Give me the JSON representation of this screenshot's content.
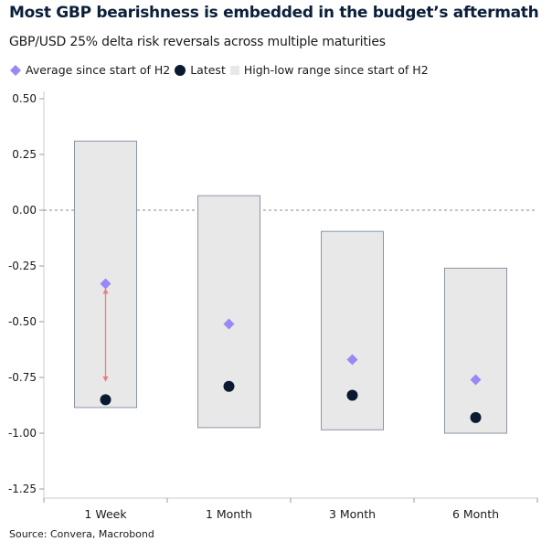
{
  "chart_data": {
    "type": "range-dot",
    "title": "Most GBP bearishness is embedded in the budget’s aftermath",
    "subtitle": "GBP/USD 25% delta risk reversals across multiple maturities",
    "source": "Source: Convera, Macrobond",
    "categories": [
      "1 Week",
      "1 Month",
      "3 Month",
      "6 Month"
    ],
    "series": [
      {
        "name": "Average since start of H2",
        "marker": "diamond",
        "color": "#9b87f5",
        "values": [
          -0.33,
          -0.51,
          -0.67,
          -0.76
        ]
      },
      {
        "name": "Latest",
        "marker": "circle",
        "color": "#0b1a30",
        "values": [
          -0.85,
          -0.79,
          -0.83,
          -0.93
        ]
      },
      {
        "name": "High-low range since start of H2",
        "marker": "box",
        "color": "#e8e8e8",
        "high": [
          0.31,
          0.065,
          -0.095,
          -0.26
        ],
        "low": [
          -0.885,
          -0.975,
          -0.985,
          -1.0
        ]
      }
    ],
    "ylim": [
      -1.25,
      0.5
    ],
    "yticks": [
      "0.50",
      "0.25",
      "0.00",
      "-0.25",
      "-0.50",
      "-0.75",
      "-1.00",
      "-1.25"
    ],
    "zero_line": "dashed",
    "annotation": {
      "type": "double-arrow",
      "category": "1 Week",
      "from": -0.35,
      "to": -0.77,
      "color": "#f07a7a"
    },
    "legend_placement": "top-left"
  }
}
